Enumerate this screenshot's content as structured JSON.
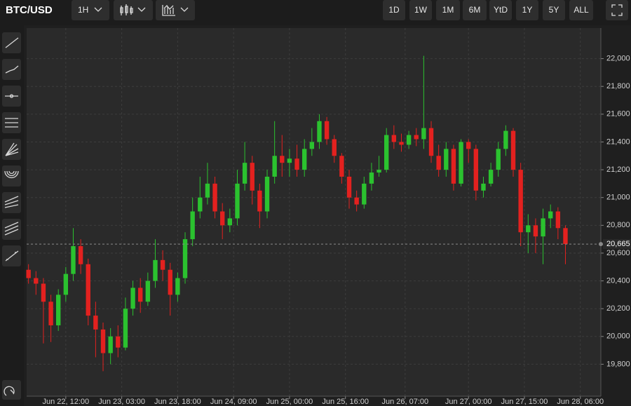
{
  "toolbar": {
    "symbol": "BTC/USD",
    "interval": "1H",
    "ranges": [
      "1D",
      "1W",
      "1M",
      "6M",
      "YtD",
      "1Y",
      "5Y",
      "ALL"
    ]
  },
  "chart_data": {
    "type": "candlestick",
    "up_color": "#2bc22f",
    "down_color": "#e3211f",
    "grid": true,
    "xlim": [
      1.5,
      155.5
    ],
    "xticks": [
      {
        "value": 12,
        "label": "Jun 22, 12:00"
      },
      {
        "value": 27,
        "label": "Jun 23, 03:00"
      },
      {
        "value": 42,
        "label": "Jun 23, 18:00"
      },
      {
        "value": 57,
        "label": "Jun 24, 09:00"
      },
      {
        "value": 72,
        "label": "Jun 25, 00:00"
      },
      {
        "value": 87,
        "label": "Jun 25, 16:00"
      },
      {
        "value": 103,
        "label": "Jun 26, 07:00"
      },
      {
        "value": 120,
        "label": "Jun 27, 00:00"
      },
      {
        "value": 135,
        "label": "Jun 27, 15:00"
      },
      {
        "value": 150,
        "label": "Jun 28, 06:00"
      }
    ],
    "ylim": [
      19570,
      22220
    ],
    "yticks": [
      {
        "value": 19800,
        "label": "19,800"
      },
      {
        "value": 20000,
        "label": "20,000"
      },
      {
        "value": 20200,
        "label": "20,200"
      },
      {
        "value": 20400,
        "label": "20,400"
      },
      {
        "value": 20600,
        "label": "20,600"
      },
      {
        "value": 20800,
        "label": "20,800"
      },
      {
        "value": 21000,
        "label": "21,000"
      },
      {
        "value": 21200,
        "label": "21,200"
      },
      {
        "value": 21400,
        "label": "21,400"
      },
      {
        "value": 21600,
        "label": "21,600"
      },
      {
        "value": 21800,
        "label": "21,800"
      },
      {
        "value": 22000,
        "label": "22,000"
      }
    ],
    "last_price": {
      "value": 20665,
      "label": "20,665"
    },
    "x": [
      2,
      4,
      6,
      8,
      10,
      12,
      14,
      16,
      18,
      20,
      22,
      24,
      26,
      28,
      30,
      32,
      34,
      36,
      38,
      40,
      42,
      44,
      46,
      48,
      50,
      52,
      54,
      56,
      58,
      60,
      62,
      64,
      66,
      68,
      70,
      72,
      74,
      76,
      78,
      80,
      82,
      84,
      86,
      88,
      90,
      92,
      94,
      96,
      98,
      100,
      102,
      104,
      106,
      108,
      110,
      112,
      114,
      116,
      118,
      120,
      122,
      124,
      126,
      128,
      130,
      132,
      134,
      136,
      138,
      140,
      142,
      144,
      146
    ],
    "open": [
      20480,
      20420,
      20380,
      20250,
      20080,
      20300,
      20450,
      20650,
      20520,
      20150,
      20050,
      19880,
      20000,
      19920,
      20200,
      20350,
      20250,
      20400,
      20550,
      20480,
      20300,
      20420,
      20700,
      20900,
      21000,
      21100,
      20900,
      20800,
      20850,
      21100,
      21250,
      21050,
      20900,
      21150,
      21300,
      21250,
      21280,
      21200,
      21350,
      21400,
      21550,
      21420,
      21300,
      21150,
      21000,
      20950,
      21100,
      21180,
      21200,
      21450,
      21400,
      21380,
      21450,
      21420,
      21500,
      21300,
      21200,
      21350,
      21100,
      21400,
      21350,
      21050,
      21100,
      21200,
      21350,
      21480,
      21200,
      20750,
      20800,
      20720,
      20850,
      20900,
      20780
    ],
    "high": [
      20520,
      20470,
      20420,
      20300,
      20340,
      20500,
      20780,
      20700,
      20560,
      20250,
      20100,
      20060,
      20080,
      20280,
      20400,
      20420,
      20460,
      20700,
      20620,
      20530,
      20460,
      20750,
      21000,
      21150,
      21250,
      21150,
      20960,
      20920,
      21200,
      21400,
      21300,
      21100,
      21200,
      21550,
      21450,
      21350,
      21380,
      21420,
      21500,
      21600,
      21580,
      21450,
      21320,
      21200,
      21050,
      21150,
      21250,
      21300,
      21500,
      21520,
      21460,
      21480,
      21500,
      22020,
      21550,
      21380,
      21400,
      21380,
      21420,
      21420,
      21380,
      21150,
      21250,
      21400,
      21520,
      21500,
      21250,
      20880,
      20850,
      20920,
      20950,
      20930,
      20800
    ],
    "low": [
      20380,
      20300,
      19950,
      19960,
      20040,
      20250,
      20400,
      20450,
      20080,
      19850,
      19750,
      19800,
      19850,
      19900,
      20150,
      20170,
      20220,
      20350,
      20400,
      20150,
      20250,
      20380,
      20650,
      20850,
      20950,
      20850,
      20700,
      20750,
      20800,
      21050,
      20950,
      20780,
      20850,
      21100,
      21150,
      21150,
      21150,
      21150,
      21300,
      21350,
      21380,
      21250,
      21100,
      20920,
      20900,
      20920,
      21050,
      21150,
      21180,
      21350,
      21330,
      21350,
      21370,
      21350,
      21250,
      21150,
      21150,
      21050,
      21080,
      21250,
      20980,
      21000,
      21080,
      21150,
      21300,
      21150,
      20650,
      20600,
      20600,
      20520,
      20780,
      20700,
      20520
    ],
    "close": [
      20420,
      20380,
      20250,
      20080,
      20300,
      20450,
      20650,
      20520,
      20150,
      20050,
      19880,
      20000,
      19920,
      20200,
      20350,
      20250,
      20400,
      20550,
      20480,
      20300,
      20420,
      20700,
      20900,
      21000,
      21100,
      20900,
      20800,
      20850,
      21100,
      21250,
      21050,
      20900,
      21150,
      21300,
      21250,
      21280,
      21200,
      21350,
      21400,
      21550,
      21420,
      21300,
      21150,
      21000,
      20950,
      21100,
      21180,
      21200,
      21450,
      21400,
      21380,
      21450,
      21420,
      21500,
      21300,
      21200,
      21350,
      21100,
      21400,
      21350,
      21050,
      21100,
      21200,
      21350,
      21480,
      21200,
      20750,
      20800,
      20720,
      20850,
      20900,
      20780,
      20665
    ]
  }
}
